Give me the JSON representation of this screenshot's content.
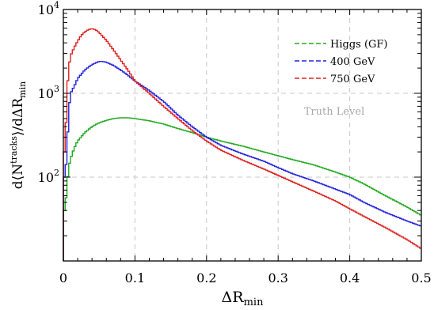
{
  "chart_data": {
    "type": "line",
    "step": true,
    "xlabel": "ΔR",
    "xlabel_sub": "min",
    "ylabel": "d⟨N",
    "ylabel_sup": "tracks",
    "ylabel_tail": "⟩/dΔR",
    "ylabel_sub": "min",
    "xlim": [
      0,
      0.5
    ],
    "ylim": [
      10,
      10000
    ],
    "yscale": "log",
    "grid": true,
    "legend_position": "top-right",
    "annotation": "Truth Level",
    "x_ticks": [
      {
        "value": 0.0,
        "label": "0"
      },
      {
        "value": 0.1,
        "label": "0.1"
      },
      {
        "value": 0.2,
        "label": "0.2"
      },
      {
        "value": 0.3,
        "label": "0.3"
      },
      {
        "value": 0.4,
        "label": "0.4"
      },
      {
        "value": 0.5,
        "label": "0.5"
      }
    ],
    "y_ticks": [
      {
        "value": 100,
        "base": "10",
        "exp": "2"
      },
      {
        "value": 1000,
        "base": "10",
        "exp": "3"
      },
      {
        "value": 10000,
        "base": "10",
        "exp": "4"
      }
    ],
    "series": [
      {
        "name": "Higgs (GF)",
        "color": "#22aa22",
        "x": [
          0.0025,
          0.005,
          0.0075,
          0.01,
          0.015,
          0.02,
          0.03,
          0.04,
          0.05,
          0.06,
          0.07,
          0.08,
          0.09,
          0.1,
          0.12,
          0.14,
          0.16,
          0.18,
          0.2,
          0.22,
          0.25,
          0.28,
          0.3,
          0.32,
          0.35,
          0.38,
          0.4,
          0.42,
          0.45,
          0.48,
          0.5
        ],
        "y": [
          40,
          80,
          130,
          165,
          220,
          270,
          340,
          400,
          445,
          475,
          500,
          510,
          510,
          500,
          470,
          430,
          380,
          340,
          300,
          270,
          235,
          200,
          180,
          162,
          140,
          115,
          100,
          83,
          60,
          44,
          35
        ]
      },
      {
        "name": "400 GeV",
        "color": "#2222dd",
        "x": [
          0.0025,
          0.005,
          0.0075,
          0.01,
          0.015,
          0.02,
          0.03,
          0.04,
          0.05,
          0.055,
          0.06,
          0.07,
          0.08,
          0.09,
          0.1,
          0.12,
          0.14,
          0.16,
          0.18,
          0.2,
          0.22,
          0.25,
          0.28,
          0.3,
          0.32,
          0.35,
          0.38,
          0.4,
          0.42,
          0.45,
          0.48,
          0.5
        ],
        "y": [
          100,
          200,
          600,
          1000,
          1200,
          1500,
          1900,
          2200,
          2400,
          2400,
          2350,
          2150,
          1900,
          1650,
          1400,
          1080,
          800,
          550,
          400,
          300,
          240,
          190,
          155,
          130,
          110,
          90,
          72,
          62,
          50,
          38,
          30,
          26
        ]
      },
      {
        "name": "750 GeV",
        "color": "#dd2222",
        "x": [
          0.0025,
          0.005,
          0.0075,
          0.01,
          0.015,
          0.02,
          0.025,
          0.03,
          0.035,
          0.04,
          0.045,
          0.05,
          0.06,
          0.07,
          0.08,
          0.09,
          0.1,
          0.12,
          0.14,
          0.16,
          0.18,
          0.2,
          0.22,
          0.25,
          0.28,
          0.3,
          0.32,
          0.35,
          0.38,
          0.4,
          0.42,
          0.45,
          0.48,
          0.5
        ],
        "y": [
          200,
          1000,
          2000,
          2800,
          3500,
          4200,
          4900,
          5400,
          5750,
          5900,
          5750,
          5300,
          4300,
          3300,
          2500,
          1900,
          1400,
          1000,
          700,
          500,
          360,
          270,
          210,
          160,
          125,
          105,
          88,
          68,
          52,
          42,
          34,
          25,
          18,
          14
        ]
      }
    ]
  }
}
